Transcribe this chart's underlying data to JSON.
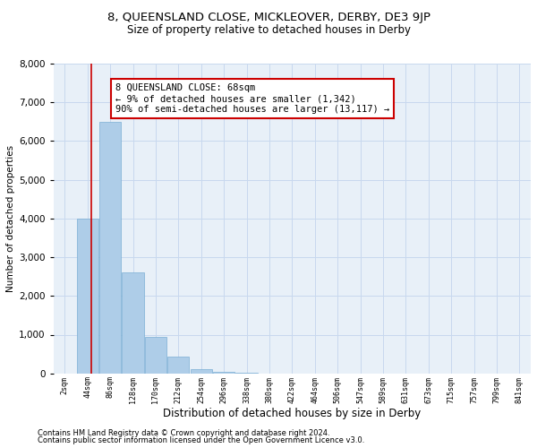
{
  "title_line1": "8, QUEENSLAND CLOSE, MICKLEOVER, DERBY, DE3 9JP",
  "title_line2": "Size of property relative to detached houses in Derby",
  "xlabel": "Distribution of detached houses by size in Derby",
  "ylabel": "Number of detached properties",
  "footnote1": "Contains HM Land Registry data © Crown copyright and database right 2024.",
  "footnote2": "Contains public sector information licensed under the Open Government Licence v3.0.",
  "bin_labels": [
    "2sqm",
    "44sqm",
    "86sqm",
    "128sqm",
    "170sqm",
    "212sqm",
    "254sqm",
    "296sqm",
    "338sqm",
    "380sqm",
    "422sqm",
    "464sqm",
    "506sqm",
    "547sqm",
    "589sqm",
    "631sqm",
    "673sqm",
    "715sqm",
    "757sqm",
    "799sqm",
    "841sqm"
  ],
  "bar_values": [
    5,
    4000,
    6500,
    2600,
    950,
    430,
    120,
    50,
    20,
    5,
    2,
    0,
    0,
    0,
    0,
    0,
    0,
    0,
    0,
    0,
    0
  ],
  "bar_color": "#aecde8",
  "bar_edge_color": "#7aaed4",
  "grid_color": "#c8d8ee",
  "background_color": "#e8f0f8",
  "red_line_x": 1.15,
  "annotation_box_text": "8 QUEENSLAND CLOSE: 68sqm\n← 9% of detached houses are smaller (1,342)\n90% of semi-detached houses are larger (13,117) →",
  "annotation_box_color": "#ffffff",
  "annotation_box_edge_color": "#cc0000",
  "ylim": [
    0,
    8000
  ],
  "yticks": [
    0,
    1000,
    2000,
    3000,
    4000,
    5000,
    6000,
    7000,
    8000
  ],
  "title1_fontsize": 9.5,
  "title2_fontsize": 8.5,
  "xlabel_fontsize": 8.5,
  "ylabel_fontsize": 7.5,
  "footnote_fontsize": 6.0,
  "annot_fontsize": 7.5
}
